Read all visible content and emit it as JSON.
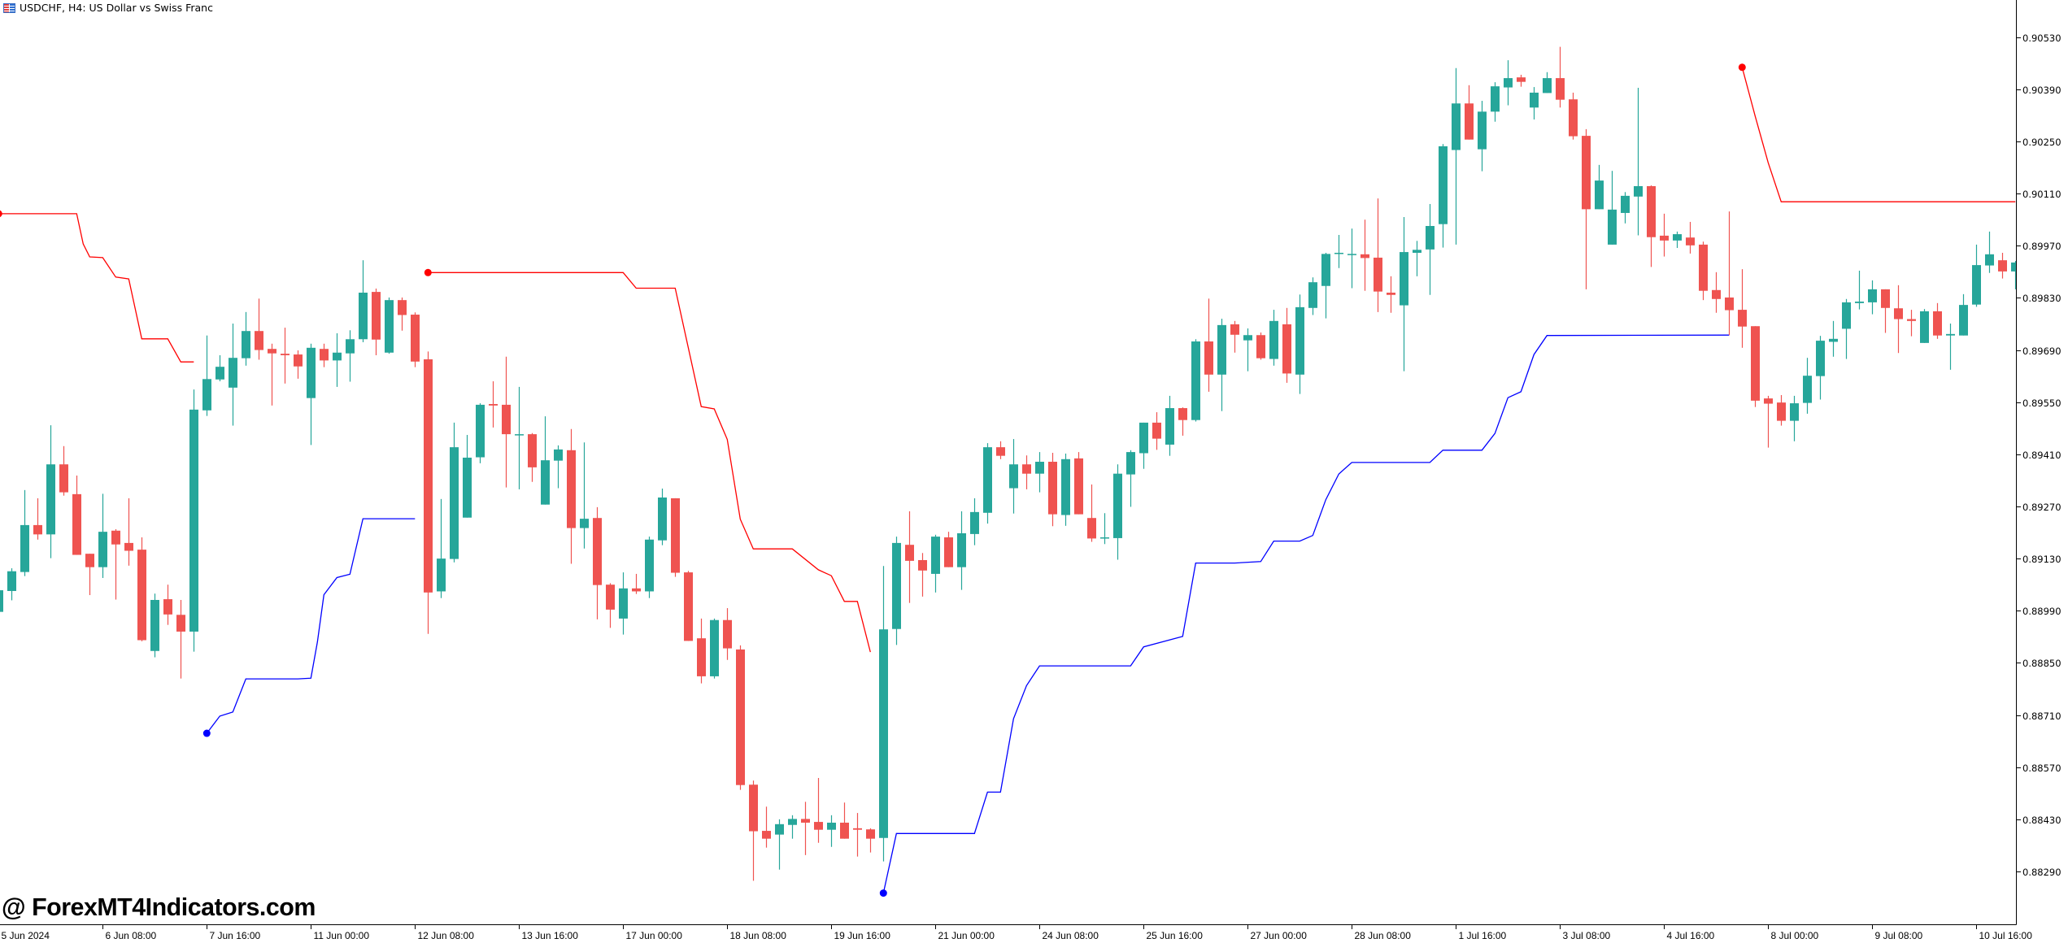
{
  "header": {
    "title": "USDCHF, H4:  US Dollar vs Swiss Franc",
    "icon": "chart-window-icon"
  },
  "watermark": "@ ForexMT4Indicators.com",
  "colors": {
    "bull": "#26a69a",
    "bear": "#ef5350",
    "upper_line": "#ff0000",
    "lower_line": "#0000ff",
    "axis": "#000000"
  },
  "chart_data": {
    "type": "candlestick",
    "title": "USDCHF, H4",
    "ylim": [
      0.8829,
      0.9053
    ],
    "y_ticks": [
      "0.90530",
      "0.90390",
      "0.90250",
      "0.90110",
      "0.89970",
      "0.89830",
      "0.89690",
      "0.89550",
      "0.89410",
      "0.89270",
      "0.89130",
      "0.88990",
      "0.88850",
      "0.88710",
      "0.88570",
      "0.88430",
      "0.88290"
    ],
    "x_labels": [
      "5 Jun 2024",
      "6 Jun 08:00",
      "7 Jun 16:00",
      "11 Jun 00:00",
      "12 Jun 08:00",
      "13 Jun 16:00",
      "17 Jun 00:00",
      "18 Jun 08:00",
      "19 Jun 16:00",
      "21 Jun 00:00",
      "24 Jun 08:00",
      "25 Jun 16:00",
      "27 Jun 00:00",
      "28 Jun 08:00",
      "1 Jul 16:00",
      "3 Jul 08:00",
      "4 Jul 16:00",
      "8 Jul 00:00",
      "9 Jul 08:00",
      "10 Jul 16:00"
    ],
    "x_label_every_bars": 8,
    "fields": [
      "open",
      "high",
      "low",
      "close"
    ],
    "candles": [
      [
        0.88987,
        0.8905,
        0.8896,
        0.89045
      ],
      [
        0.89043,
        0.89104,
        0.89018,
        0.89096
      ],
      [
        0.89094,
        0.89314,
        0.89083,
        0.8922
      ],
      [
        0.8922,
        0.89292,
        0.89181,
        0.89195
      ],
      [
        0.89195,
        0.89488,
        0.89131,
        0.89383
      ],
      [
        0.89383,
        0.89432,
        0.89299,
        0.89308
      ],
      [
        0.89303,
        0.89353,
        0.8914,
        0.8914
      ],
      [
        0.89143,
        0.89143,
        0.89032,
        0.89107
      ],
      [
        0.89107,
        0.89304,
        0.89078,
        0.89202
      ],
      [
        0.89205,
        0.89209,
        0.8902,
        0.89168
      ],
      [
        0.89172,
        0.89292,
        0.89111,
        0.89151
      ],
      [
        0.89154,
        0.89187,
        0.88908,
        0.88911
      ],
      [
        0.88882,
        0.89036,
        0.88865,
        0.89019
      ],
      [
        0.89021,
        0.8906,
        0.88952,
        0.8898
      ],
      [
        0.88979,
        0.89019,
        0.88808,
        0.88934
      ],
      [
        0.88934,
        0.89584,
        0.8888,
        0.8953
      ],
      [
        0.89528,
        0.89729,
        0.89513,
        0.89612
      ],
      [
        0.89611,
        0.89676,
        0.89606,
        0.89645
      ],
      [
        0.89589,
        0.89761,
        0.89487,
        0.89669
      ],
      [
        0.89668,
        0.89792,
        0.89648,
        0.89741
      ],
      [
        0.89741,
        0.89828,
        0.89664,
        0.8969
      ],
      [
        0.89693,
        0.89707,
        0.89541,
        0.89681
      ],
      [
        0.8968,
        0.8975,
        0.896,
        0.89676
      ],
      [
        0.89678,
        0.89689,
        0.89613,
        0.89646
      ],
      [
        0.89561,
        0.89707,
        0.89435,
        0.89696
      ],
      [
        0.89693,
        0.89707,
        0.89644,
        0.89662
      ],
      [
        0.89662,
        0.89735,
        0.89591,
        0.89683
      ],
      [
        0.89681,
        0.89743,
        0.89605,
        0.89719
      ],
      [
        0.89719,
        0.89931,
        0.89711,
        0.89844
      ],
      [
        0.89846,
        0.89855,
        0.89676,
        0.89718
      ],
      [
        0.89683,
        0.89831,
        0.8968,
        0.89824
      ],
      [
        0.89824,
        0.89831,
        0.89742,
        0.89784
      ],
      [
        0.89785,
        0.89791,
        0.89644,
        0.89659
      ],
      [
        0.89665,
        0.89686,
        0.88928,
        0.89039
      ],
      [
        0.89042,
        0.8929,
        0.89024,
        0.8913
      ],
      [
        0.89129,
        0.89495,
        0.8912,
        0.89429
      ],
      [
        0.8924,
        0.89462,
        0.8924,
        0.89401
      ],
      [
        0.89402,
        0.89547,
        0.89386,
        0.89543
      ],
      [
        0.89545,
        0.89606,
        0.89482,
        0.89541
      ],
      [
        0.89543,
        0.89672,
        0.89321,
        0.89464
      ],
      [
        0.89463,
        0.89591,
        0.89316,
        0.89464
      ],
      [
        0.89464,
        0.89467,
        0.89336,
        0.89375
      ],
      [
        0.89275,
        0.89512,
        0.89275,
        0.89394
      ],
      [
        0.89393,
        0.89434,
        0.89319,
        0.89423
      ],
      [
        0.89421,
        0.89478,
        0.89116,
        0.89212
      ],
      [
        0.89212,
        0.89442,
        0.89157,
        0.89237
      ],
      [
        0.89239,
        0.89268,
        0.88967,
        0.89059
      ],
      [
        0.8906,
        0.89064,
        0.88944,
        0.88993
      ],
      [
        0.88969,
        0.89093,
        0.88926,
        0.8905
      ],
      [
        0.8905,
        0.89089,
        0.89035,
        0.89042
      ],
      [
        0.89042,
        0.89189,
        0.89024,
        0.89181
      ],
      [
        0.89179,
        0.89318,
        0.89166,
        0.89294
      ],
      [
        0.89292,
        0.89292,
        0.89081,
        0.89092
      ],
      [
        0.89093,
        0.89097,
        0.88909,
        0.88909
      ],
      [
        0.88916,
        0.88969,
        0.88795,
        0.88814
      ],
      [
        0.88814,
        0.88969,
        0.88808,
        0.88965
      ],
      [
        0.88965,
        0.88997,
        0.88858,
        0.88889
      ],
      [
        0.88886,
        0.88897,
        0.88509,
        0.88522
      ],
      [
        0.88523,
        0.88534,
        0.88265,
        0.88398
      ],
      [
        0.88399,
        0.88464,
        0.88354,
        0.88378
      ],
      [
        0.88389,
        0.8843,
        0.88295,
        0.88417
      ],
      [
        0.88415,
        0.88441,
        0.88378,
        0.88431
      ],
      [
        0.88431,
        0.88477,
        0.88334,
        0.88421
      ],
      [
        0.88423,
        0.88541,
        0.88367,
        0.88402
      ],
      [
        0.88402,
        0.88441,
        0.88356,
        0.88421
      ],
      [
        0.88421,
        0.88475,
        0.88378,
        0.88378
      ],
      [
        0.88406,
        0.88447,
        0.8833,
        0.88402
      ],
      [
        0.88403,
        0.88406,
        0.88341,
        0.88378
      ],
      [
        0.8838,
        0.8911,
        0.88317,
        0.8894
      ],
      [
        0.88941,
        0.89189,
        0.88898,
        0.89172
      ],
      [
        0.89167,
        0.89257,
        0.89011,
        0.89124
      ],
      [
        0.89126,
        0.89145,
        0.89028,
        0.89098
      ],
      [
        0.89089,
        0.89194,
        0.89039,
        0.89189
      ],
      [
        0.89187,
        0.89202,
        0.89107,
        0.89107
      ],
      [
        0.89107,
        0.89257,
        0.89046,
        0.89198
      ],
      [
        0.89196,
        0.89292,
        0.89166,
        0.89255
      ],
      [
        0.89253,
        0.8944,
        0.89224,
        0.89429
      ],
      [
        0.89429,
        0.89445,
        0.89397,
        0.89406
      ],
      [
        0.89319,
        0.89451,
        0.89251,
        0.89383
      ],
      [
        0.89383,
        0.89407,
        0.89316,
        0.89358
      ],
      [
        0.89358,
        0.89416,
        0.89308,
        0.8939
      ],
      [
        0.8939,
        0.89414,
        0.89217,
        0.89249
      ],
      [
        0.89247,
        0.89412,
        0.89218,
        0.89397
      ],
      [
        0.89399,
        0.89416,
        0.89249,
        0.89249
      ],
      [
        0.89239,
        0.89329,
        0.89175,
        0.89184
      ],
      [
        0.89184,
        0.89252,
        0.89169,
        0.89187
      ],
      [
        0.89185,
        0.89383,
        0.89127,
        0.89358
      ],
      [
        0.89356,
        0.89421,
        0.89269,
        0.89416
      ],
      [
        0.89413,
        0.89495,
        0.89371,
        0.89495
      ],
      [
        0.89495,
        0.89523,
        0.89422,
        0.89452
      ],
      [
        0.89436,
        0.89567,
        0.89406,
        0.89534
      ],
      [
        0.89534,
        0.89536,
        0.8946,
        0.89502
      ],
      [
        0.89502,
        0.89719,
        0.89498,
        0.89713
      ],
      [
        0.89713,
        0.89828,
        0.89578,
        0.89624
      ],
      [
        0.89624,
        0.89774,
        0.89526,
        0.89757
      ],
      [
        0.89759,
        0.89768,
        0.89683,
        0.89731
      ],
      [
        0.89716,
        0.89748,
        0.89633,
        0.8973
      ],
      [
        0.8973,
        0.89737,
        0.89664,
        0.89668
      ],
      [
        0.89666,
        0.89798,
        0.89648,
        0.89768
      ],
      [
        0.89759,
        0.89803,
        0.89602,
        0.89627
      ],
      [
        0.89624,
        0.89839,
        0.89572,
        0.89805
      ],
      [
        0.89803,
        0.89885,
        0.89784,
        0.89872
      ],
      [
        0.89862,
        0.89951,
        0.89775,
        0.89948
      ],
      [
        0.89948,
        0.89999,
        0.8991,
        0.89951
      ],
      [
        0.89947,
        0.90016,
        0.89856,
        0.89948
      ],
      [
        0.89947,
        0.9004,
        0.89849,
        0.89937
      ],
      [
        0.89938,
        0.90097,
        0.89792,
        0.89847
      ],
      [
        0.89844,
        0.89888,
        0.8979,
        0.89838
      ],
      [
        0.8981,
        0.90047,
        0.89633,
        0.89953
      ],
      [
        0.89951,
        0.89983,
        0.89888,
        0.89959
      ],
      [
        0.8996,
        0.90082,
        0.89838,
        0.90023
      ],
      [
        0.90028,
        0.90243,
        0.89965,
        0.90237
      ],
      [
        0.90227,
        0.90447,
        0.89973,
        0.90352
      ],
      [
        0.90352,
        0.90401,
        0.90255,
        0.90255
      ],
      [
        0.90229,
        0.90359,
        0.9017,
        0.9033
      ],
      [
        0.9033,
        0.90409,
        0.90303,
        0.90398
      ],
      [
        0.90395,
        0.90468,
        0.90347,
        0.9042
      ],
      [
        0.90422,
        0.90429,
        0.90397,
        0.9041
      ],
      [
        0.90341,
        0.90396,
        0.90309,
        0.90381
      ],
      [
        0.9038,
        0.90436,
        0.9038,
        0.9042
      ],
      [
        0.9042,
        0.90504,
        0.90341,
        0.90362
      ],
      [
        0.90363,
        0.90381,
        0.90255,
        0.90264
      ],
      [
        0.90265,
        0.90283,
        0.89853,
        0.90068
      ],
      [
        0.90068,
        0.90187,
        0.90068,
        0.90145
      ],
      [
        0.89973,
        0.90171,
        0.89973,
        0.90067
      ],
      [
        0.90058,
        0.90114,
        0.9003,
        0.90104
      ],
      [
        0.90102,
        0.90394,
        0.89998,
        0.9013
      ],
      [
        0.9013,
        0.90132,
        0.89913,
        0.89993
      ],
      [
        0.89997,
        0.90056,
        0.89941,
        0.89984
      ],
      [
        0.89984,
        0.90008,
        0.89964,
        0.90001
      ],
      [
        0.89992,
        0.90034,
        0.89949,
        0.89971
      ],
      [
        0.89973,
        0.89981,
        0.89824,
        0.89849
      ],
      [
        0.89851,
        0.89899,
        0.8979,
        0.89827
      ],
      [
        0.89831,
        0.90062,
        0.8973,
        0.89797
      ],
      [
        0.89798,
        0.89907,
        0.89696,
        0.89753
      ],
      [
        0.89754,
        0.89754,
        0.89537,
        0.89554
      ],
      [
        0.8956,
        0.89567,
        0.89428,
        0.89546
      ],
      [
        0.89549,
        0.89569,
        0.89487,
        0.895
      ],
      [
        0.895,
        0.89567,
        0.89445,
        0.89547
      ],
      [
        0.89548,
        0.89669,
        0.89519,
        0.89621
      ],
      [
        0.8962,
        0.89728,
        0.89557,
        0.89715
      ],
      [
        0.89712,
        0.89768,
        0.89672,
        0.8972
      ],
      [
        0.89747,
        0.89827,
        0.89666,
        0.89818
      ],
      [
        0.89816,
        0.89903,
        0.89799,
        0.8982
      ],
      [
        0.89818,
        0.89877,
        0.89786,
        0.89853
      ],
      [
        0.89853,
        0.89853,
        0.89736,
        0.89803
      ],
      [
        0.89802,
        0.89864,
        0.89682,
        0.89773
      ],
      [
        0.89773,
        0.89798,
        0.89727,
        0.89768
      ],
      [
        0.89709,
        0.898,
        0.89709,
        0.89794
      ],
      [
        0.89794,
        0.89816,
        0.8972,
        0.89729
      ],
      [
        0.89729,
        0.89761,
        0.89637,
        0.89733
      ],
      [
        0.89729,
        0.8984,
        0.89729,
        0.89811
      ],
      [
        0.89812,
        0.89973,
        0.89806,
        0.89918
      ],
      [
        0.89917,
        0.90008,
        0.89897,
        0.89947
      ],
      [
        0.89931,
        0.89951,
        0.89882,
        0.89901
      ],
      [
        0.89901,
        0.89929,
        0.89853,
        0.89925
      ]
    ],
    "indicator": {
      "upper_segments": [
        [
          [
            0,
            0.90056
          ],
          [
            6,
            0.90056
          ],
          [
            6.5,
            0.89975
          ],
          [
            7,
            0.8994
          ],
          [
            8,
            0.89938
          ],
          [
            9,
            0.89886
          ],
          [
            10,
            0.89881
          ],
          [
            11,
            0.8972
          ],
          [
            13,
            0.8972
          ],
          [
            14,
            0.89658
          ],
          [
            15,
            0.89658
          ]
        ],
        [
          [
            33,
            0.89898
          ],
          [
            48,
            0.89898
          ],
          [
            49,
            0.89856
          ],
          [
            52,
            0.89856
          ],
          [
            54,
            0.89538
          ],
          [
            55,
            0.89532
          ],
          [
            56,
            0.8945
          ],
          [
            57,
            0.89236
          ],
          [
            58,
            0.89156
          ],
          [
            61,
            0.89156
          ],
          [
            63,
            0.891
          ],
          [
            64,
            0.89084
          ],
          [
            65,
            0.89015
          ],
          [
            66,
            0.89015
          ],
          [
            67,
            0.88879
          ]
        ],
        [
          [
            134,
            0.90449
          ],
          [
            135,
            0.90318
          ],
          [
            136,
            0.90193
          ],
          [
            137,
            0.90088
          ],
          [
            155,
            0.90088
          ]
        ]
      ],
      "lower_segments": [
        [
          [
            16,
            0.88661
          ],
          [
            17,
            0.88707
          ],
          [
            18,
            0.88718
          ],
          [
            19,
            0.88807
          ],
          [
            23,
            0.88807
          ],
          [
            24,
            0.88809
          ],
          [
            24.5,
            0.88906
          ],
          [
            25,
            0.89033
          ],
          [
            26,
            0.89079
          ],
          [
            27,
            0.89088
          ],
          [
            28,
            0.89237
          ],
          [
            32,
            0.89237
          ]
        ],
        [
          [
            68,
            0.88232
          ],
          [
            69,
            0.88392
          ],
          [
            75,
            0.88392
          ],
          [
            76,
            0.88503
          ],
          [
            77,
            0.88503
          ],
          [
            78,
            0.887
          ],
          [
            79,
            0.88789
          ],
          [
            80,
            0.88842
          ],
          [
            87,
            0.88842
          ],
          [
            88,
            0.88893
          ],
          [
            91,
            0.88921
          ],
          [
            92,
            0.89118
          ],
          [
            95,
            0.89118
          ],
          [
            97,
            0.89122
          ],
          [
            98,
            0.89177
          ],
          [
            100,
            0.89177
          ],
          [
            101,
            0.89192
          ],
          [
            102,
            0.89288
          ],
          [
            103,
            0.89357
          ],
          [
            104,
            0.89388
          ],
          [
            110,
            0.89388
          ],
          [
            111,
            0.89421
          ],
          [
            114,
            0.89421
          ],
          [
            115,
            0.89466
          ],
          [
            116,
            0.89562
          ],
          [
            117,
            0.89578
          ],
          [
            118,
            0.89678
          ],
          [
            119,
            0.89729
          ],
          [
            133,
            0.8973
          ]
        ]
      ]
    }
  }
}
